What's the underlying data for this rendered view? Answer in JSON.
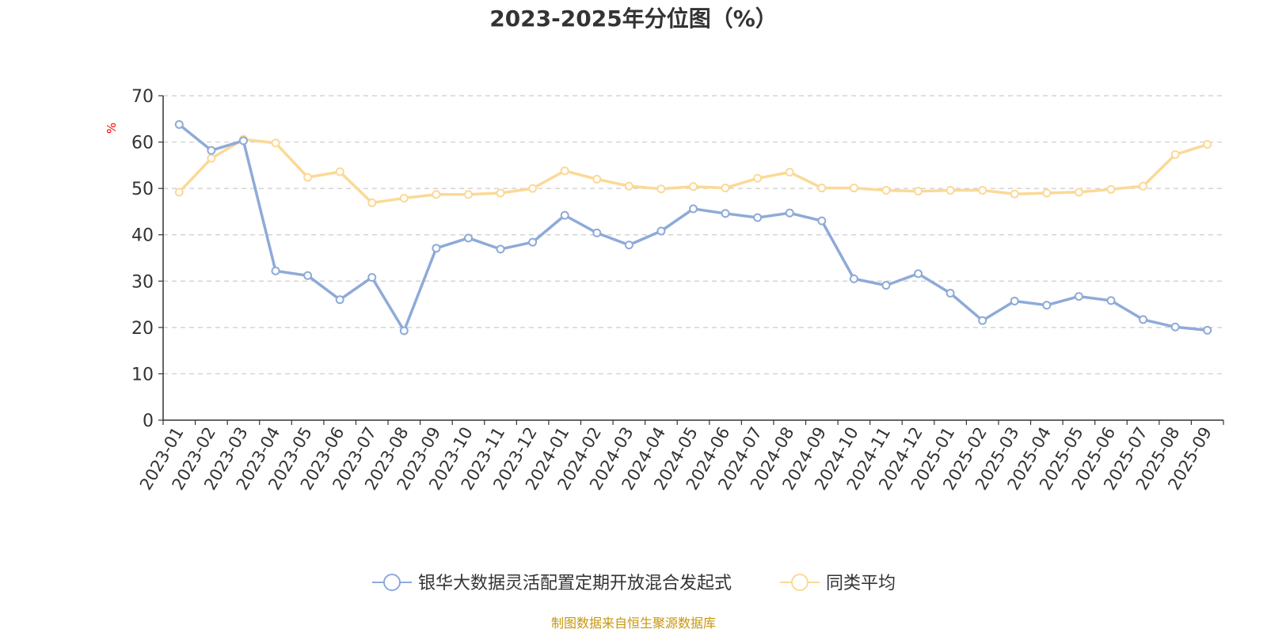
{
  "chart_data": {
    "type": "line",
    "title": "2023-2025年分位图（%）",
    "ylabel": "%",
    "ylim": [
      0,
      70
    ],
    "yticks": [
      0,
      10,
      20,
      30,
      40,
      50,
      60,
      70
    ],
    "grid": true,
    "legend_position": "bottom-center",
    "categories": [
      "2023-01",
      "2023-02",
      "2023-03",
      "2023-04",
      "2023-05",
      "2023-06",
      "2023-07",
      "2023-08",
      "2023-09",
      "2023-10",
      "2023-11",
      "2023-12",
      "2024-01",
      "2024-02",
      "2024-03",
      "2024-04",
      "2024-05",
      "2024-06",
      "2024-07",
      "2024-08",
      "2024-09",
      "2024-10",
      "2024-11",
      "2024-12",
      "2025-01",
      "2025-02",
      "2025-03",
      "2025-04",
      "2025-05",
      "2025-06",
      "2025-07",
      "2025-08",
      "2025-09"
    ],
    "series": [
      {
        "name": "银华大数据灵活配置定期开放混合发起式",
        "color": "#8eaad8",
        "values": [
          63.8,
          58.2,
          60.3,
          32.2,
          31.2,
          26.0,
          30.8,
          19.3,
          37.1,
          39.3,
          36.9,
          38.4,
          44.2,
          40.4,
          37.8,
          40.8,
          45.6,
          44.6,
          43.7,
          44.7,
          43.0,
          30.5,
          29.1,
          31.6,
          27.4,
          21.5,
          25.7,
          24.8,
          26.7,
          25.8,
          21.7,
          20.1,
          19.4
        ]
      },
      {
        "name": "同类平均",
        "color": "#fbd996",
        "values": [
          49.2,
          56.5,
          60.6,
          59.8,
          52.4,
          53.6,
          46.9,
          47.9,
          48.7,
          48.7,
          49.0,
          50.0,
          53.8,
          52.0,
          50.5,
          49.9,
          50.4,
          50.1,
          52.2,
          53.5,
          50.1,
          50.1,
          49.6,
          49.4,
          49.6,
          49.6,
          48.8,
          49.0,
          49.2,
          49.8,
          50.5,
          57.3,
          59.5
        ]
      }
    ],
    "source": "制图数据来自恒生聚源数据库",
    "colors": {
      "axis": "#333333",
      "grid": "#cccccc",
      "unit": "#ff0000",
      "source": "#c8960c",
      "title": "#333333"
    }
  }
}
